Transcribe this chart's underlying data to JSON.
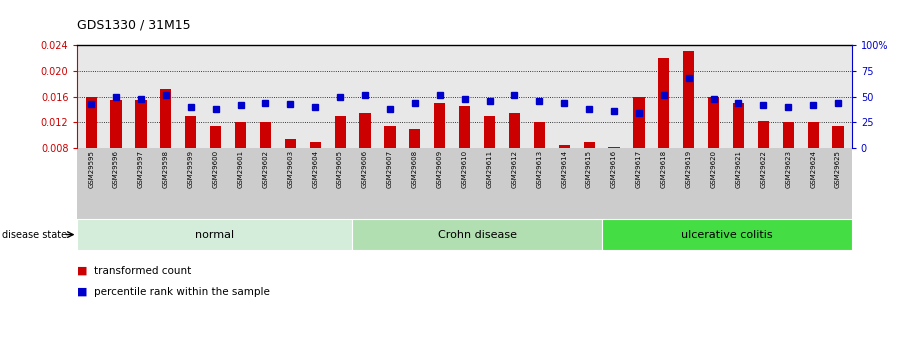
{
  "title": "GDS1330 / 31M15",
  "samples": [
    "GSM29595",
    "GSM29596",
    "GSM29597",
    "GSM29598",
    "GSM29599",
    "GSM29600",
    "GSM29601",
    "GSM29602",
    "GSM29603",
    "GSM29604",
    "GSM29605",
    "GSM29606",
    "GSM29607",
    "GSM29608",
    "GSM29609",
    "GSM29610",
    "GSM29611",
    "GSM29612",
    "GSM29613",
    "GSM29614",
    "GSM29615",
    "GSM29616",
    "GSM29617",
    "GSM29618",
    "GSM29619",
    "GSM29620",
    "GSM29621",
    "GSM29622",
    "GSM29623",
    "GSM29624",
    "GSM29625"
  ],
  "red_values": [
    0.016,
    0.0155,
    0.0155,
    0.0172,
    0.013,
    0.0115,
    0.012,
    0.012,
    0.0095,
    0.009,
    0.013,
    0.0135,
    0.0115,
    0.011,
    0.015,
    0.0145,
    0.013,
    0.0135,
    0.012,
    0.0085,
    0.009,
    0.00825,
    0.016,
    0.022,
    0.023,
    0.016,
    0.015,
    0.0122,
    0.012,
    0.012,
    0.0115
  ],
  "blue_values": [
    43,
    50,
    48,
    52,
    40,
    38,
    42,
    44,
    43,
    40,
    50,
    52,
    38,
    44,
    52,
    48,
    46,
    52,
    46,
    44,
    38,
    36,
    34,
    52,
    68,
    48,
    44,
    42,
    40,
    42,
    44
  ],
  "groups": [
    {
      "label": "normal",
      "start": 0,
      "end": 11,
      "color": "#d4edda"
    },
    {
      "label": "Crohn disease",
      "start": 11,
      "end": 21,
      "color": "#b2dfb2"
    },
    {
      "label": "ulcerative colitis",
      "start": 21,
      "end": 31,
      "color": "#44dd44"
    }
  ],
  "ylim_left": [
    0.008,
    0.024
  ],
  "yticks_left": [
    0.008,
    0.012,
    0.016,
    0.02,
    0.024
  ],
  "ylim_right": [
    0,
    100
  ],
  "yticks_right": [
    0,
    25,
    50,
    75,
    100
  ],
  "bar_color": "#cc0000",
  "square_color": "#0000cc",
  "bg_color": "#e8e8e8",
  "left_axis_color": "#cc0000",
  "right_axis_color": "#0000cc",
  "baseline": 0.008
}
